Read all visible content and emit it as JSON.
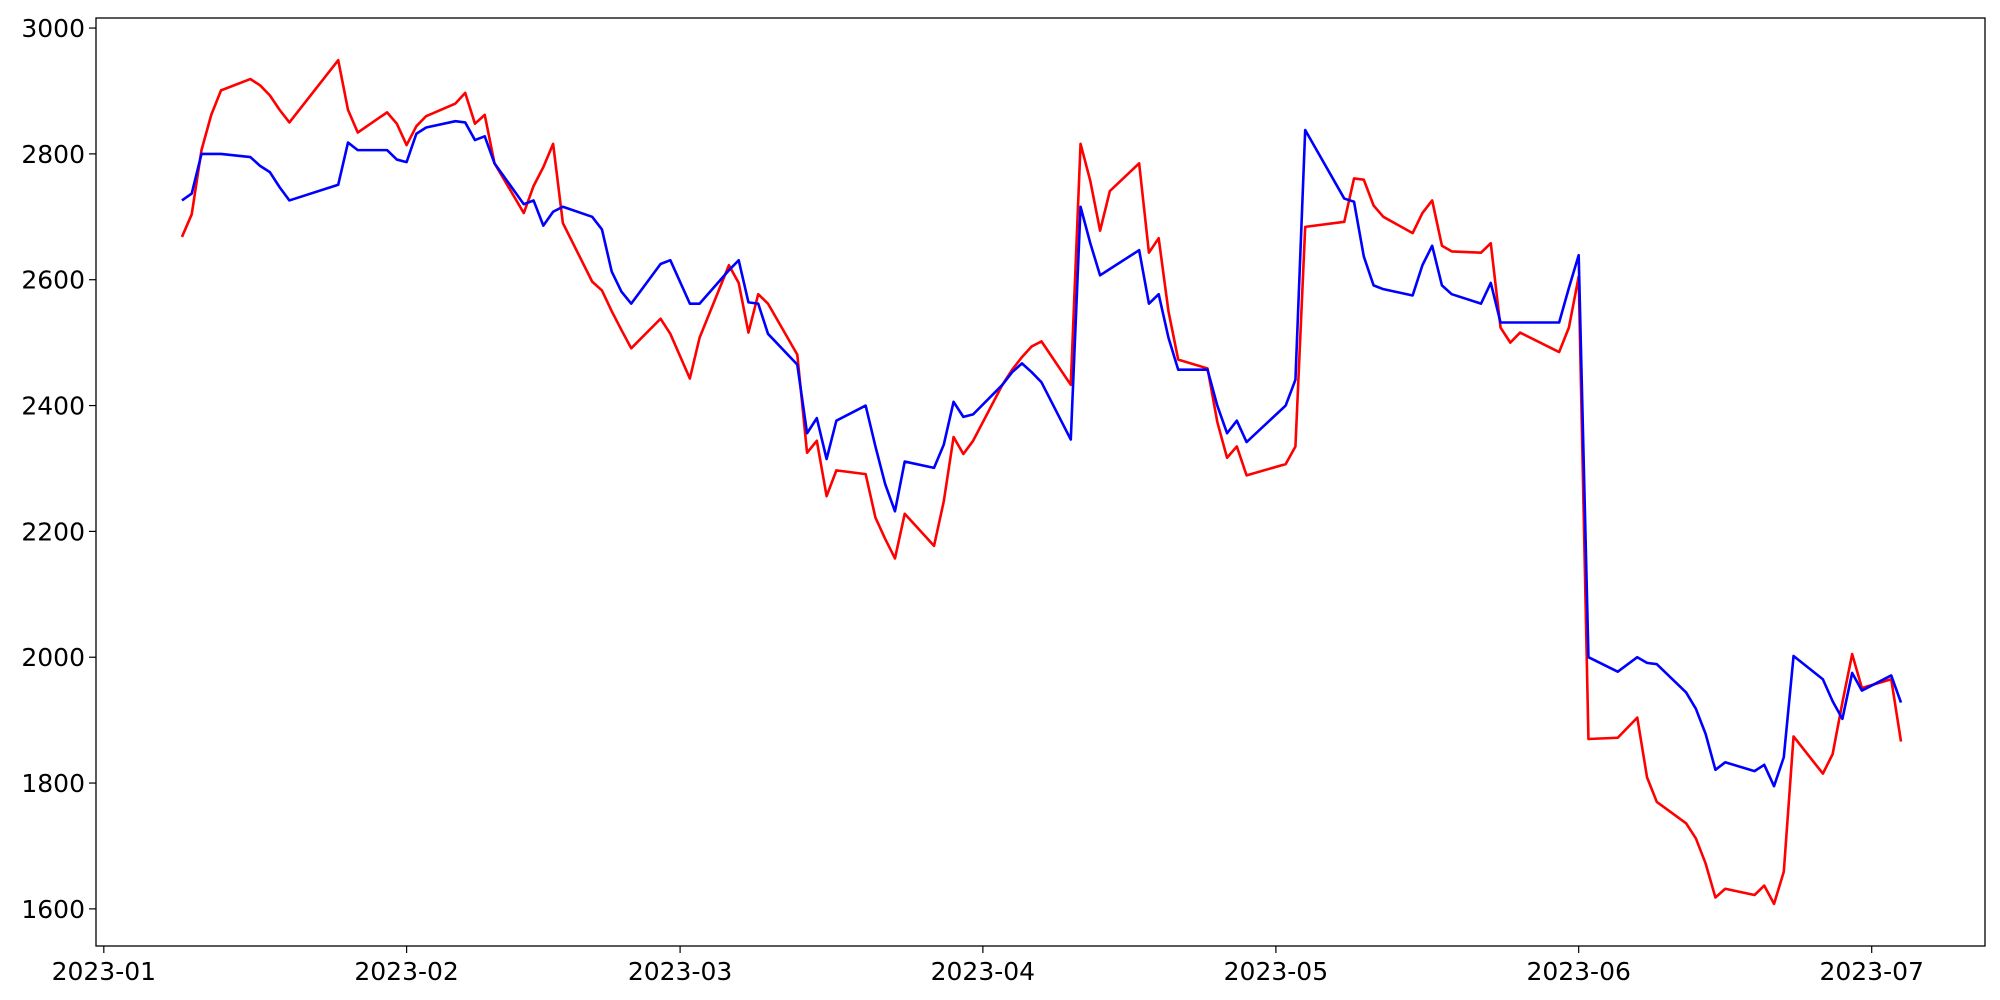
{
  "chart_data": {
    "type": "line",
    "x": [
      8,
      9,
      10,
      11,
      12,
      15,
      16,
      17,
      18,
      19,
      24,
      25,
      26,
      29,
      30,
      31,
      32,
      33,
      36,
      37,
      38,
      39,
      40,
      43,
      44,
      45,
      46,
      47,
      50,
      51,
      52,
      53,
      54,
      57,
      58,
      60,
      61,
      64,
      65,
      66,
      67,
      68,
      71,
      72,
      73,
      74,
      75,
      78,
      79,
      80,
      81,
      82,
      85,
      86,
      87,
      88,
      89,
      92,
      93,
      94,
      95,
      96,
      99,
      100,
      101,
      102,
      103,
      106,
      107,
      108,
      109,
      110,
      113,
      114,
      115,
      116,
      117,
      121,
      122,
      123,
      127,
      128,
      129,
      130,
      131,
      134,
      135,
      136,
      137,
      138,
      141,
      142,
      143,
      144,
      145,
      149,
      150,
      151,
      152,
      155,
      157,
      158,
      159,
      162,
      163,
      164,
      165,
      166,
      169,
      170,
      171,
      172,
      173,
      176,
      177,
      178,
      179,
      180,
      183,
      184
    ],
    "series": [
      {
        "color": "#ff0000",
        "values": [
          2668,
          2704,
          2806,
          2862,
          2901,
          2919,
          2909,
          2893,
          2870,
          2850,
          2949,
          2870,
          2834,
          2866,
          2848,
          2814,
          2844,
          2860,
          2880,
          2897,
          2848,
          2862,
          2785,
          2706,
          2749,
          2779,
          2816,
          2690,
          2597,
          2583,
          2550,
          2520,
          2491,
          2538,
          2514,
          2443,
          2508,
          2623,
          2595,
          2516,
          2577,
          2562,
          2481,
          2325,
          2344,
          2256,
          2297,
          2291,
          2222,
          2188,
          2157,
          2228,
          2177,
          2248,
          2350,
          2323,
          2344,
          2433,
          2457,
          2477,
          2494,
          2502,
          2433,
          2816,
          2757,
          2678,
          2741,
          2785,
          2643,
          2666,
          2550,
          2473,
          2459,
          2374,
          2317,
          2335,
          2289,
          2307,
          2335,
          2684,
          2692,
          2761,
          2759,
          2718,
          2700,
          2674,
          2706,
          2726,
          2654,
          2645,
          2643,
          2658,
          2524,
          2500,
          2516,
          2485,
          2524,
          2605,
          1870,
          1872,
          1904,
          1809,
          1770,
          1736,
          1712,
          1672,
          1618,
          1632,
          1622,
          1637,
          1608,
          1659,
          1874,
          1815,
          1846,
          1928,
          2005,
          1951,
          1965,
          1866
        ]
      },
      {
        "color": "#0000ff",
        "values": [
          2726,
          2737,
          2800,
          2800,
          2800,
          2795,
          2781,
          2771,
          2747,
          2726,
          2751,
          2818,
          2806,
          2806,
          2791,
          2787,
          2832,
          2842,
          2852,
          2850,
          2822,
          2828,
          2785,
          2720,
          2726,
          2686,
          2708,
          2716,
          2700,
          2680,
          2613,
          2581,
          2562,
          2625,
          2631,
          2562,
          2562,
          2615,
          2631,
          2564,
          2562,
          2514,
          2465,
          2356,
          2380,
          2315,
          2376,
          2400,
          2335,
          2275,
          2232,
          2311,
          2301,
          2338,
          2406,
          2382,
          2386,
          2433,
          2453,
          2467,
          2453,
          2437,
          2346,
          2716,
          2658,
          2607,
          2617,
          2647,
          2562,
          2577,
          2508,
          2457,
          2457,
          2400,
          2356,
          2376,
          2342,
          2400,
          2441,
          2838,
          2729,
          2724,
          2637,
          2591,
          2585,
          2575,
          2623,
          2654,
          2591,
          2577,
          2562,
          2595,
          2532,
          2532,
          2532,
          2532,
          2587,
          2639,
          2000,
          1977,
          2000,
          1991,
          1989,
          1944,
          1918,
          1878,
          1821,
          1833,
          1819,
          1829,
          1795,
          1841,
          2002,
          1965,
          1930,
          1902,
          1975,
          1947,
          1971,
          1928
        ]
      }
    ],
    "xlim": [
      -0.8,
      192.6
    ],
    "xticks": [
      {
        "value": 0,
        "label": "2023-01"
      },
      {
        "value": 31,
        "label": "2023-02"
      },
      {
        "value": 59,
        "label": "2023-03"
      },
      {
        "value": 90,
        "label": "2023-04"
      },
      {
        "value": 120,
        "label": "2023-05"
      },
      {
        "value": 151,
        "label": "2023-06"
      },
      {
        "value": 181,
        "label": "2023-07"
      }
    ],
    "ylim": [
      1541,
      3016
    ],
    "yticks": [
      1600,
      1800,
      2000,
      2200,
      2400,
      2600,
      2800,
      3000
    ]
  }
}
